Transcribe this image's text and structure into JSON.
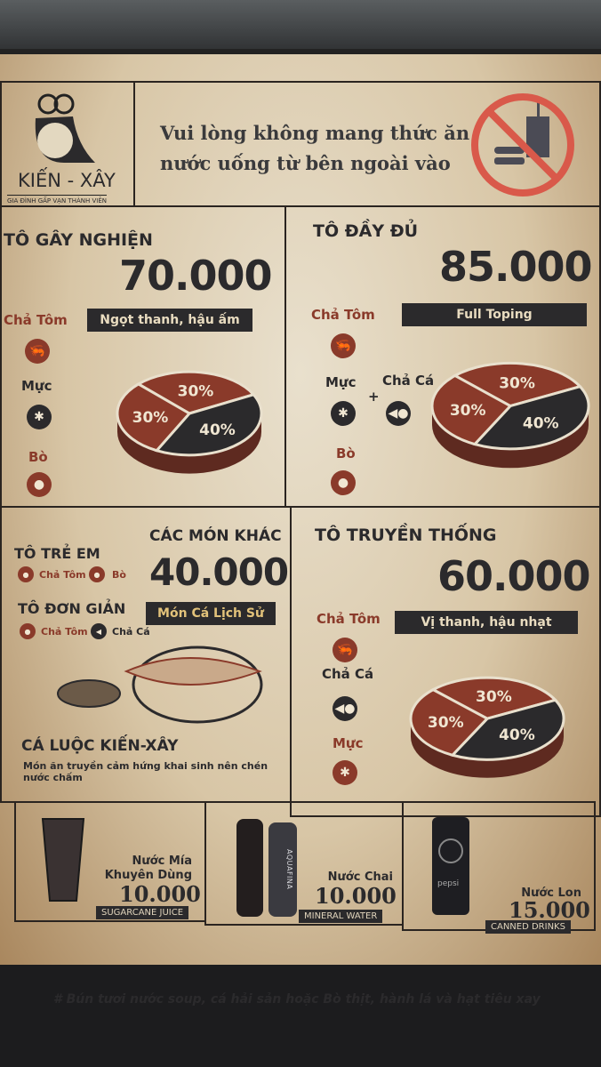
{
  "header": {
    "brand": "KIẾN - XÂY",
    "tagline": "GIA ĐÌNH GẤP VẠN THÀNH VIÊN",
    "notice_line1": "Vui lòng không mang thức ăn",
    "notice_line2": "nước uống từ bên ngoài vào",
    "notice_icon": "no-outside-food-icon"
  },
  "colors": {
    "dark": "#2b2a2c",
    "red": "#8a3a2a",
    "paper": "#e9e0cd"
  },
  "sections": [
    {
      "title": "TÔ GÂY NGHIỆN",
      "price": "70.000",
      "ribbon": "Ngọt thanh, hậu ấm",
      "items": [
        "Chả Tôm",
        "Mực",
        "Bò"
      ],
      "pie": [
        {
          "label": "30%",
          "value": 30
        },
        {
          "label": "40%",
          "value": 40
        },
        {
          "label": "30%",
          "value": 30
        }
      ]
    },
    {
      "title": "TÔ ĐẦY ĐỦ",
      "price": "85.000",
      "ribbon": "Full Toping",
      "items": [
        "Chả Tôm",
        "Mực",
        "Chả Cá",
        "Bò"
      ],
      "plus": "+",
      "pie": [
        {
          "label": "30%",
          "value": 30
        },
        {
          "label": "40%",
          "value": 40
        },
        {
          "label": "30%",
          "value": 30
        }
      ]
    },
    {
      "title": "CÁC MÓN KHÁC",
      "price": "40.000",
      "ribbon": "Món Cá Lịch Sử",
      "kids": {
        "title": "TÔ TRẺ EM",
        "items": [
          "Chả Tôm",
          "Bò"
        ]
      },
      "simple": {
        "title": "TÔ ĐƠN GIẢN",
        "items": [
          "Chả Tôm",
          "Chả Cá"
        ]
      },
      "dish": "CÁ LUỘC KIẾN-XÂY",
      "dish_desc": "Món ăn truyền cảm hứng khai sinh nên chén nước chấm"
    },
    {
      "title": "TÔ TRUYỀN THỐNG",
      "price": "60.000",
      "ribbon": "Vị thanh, hậu nhạt",
      "items": [
        "Chả Tôm",
        "Chả Cá",
        "Mực"
      ],
      "pie": [
        {
          "label": "30%",
          "value": 30
        },
        {
          "label": "40%",
          "value": 40
        },
        {
          "label": "30%",
          "value": 30
        }
      ]
    }
  ],
  "drinks": [
    {
      "name1": "Nước Mía",
      "name2": "Khuyên Dùng",
      "price": "10.000",
      "en": "SUGARCANE JUICE"
    },
    {
      "name1": "Nước Chai",
      "price": "10.000",
      "en": "MINERAL WATER",
      "brand": "AQUAFINA"
    },
    {
      "name1": "Nước Lon",
      "price": "15.000",
      "en": "CANNED DRINKS",
      "brand": "pepsi"
    }
  ],
  "footer": "# Bún tươi nước soup, cá hải sản hoặc Bò thịt, hành lá và hạt tiêu xay"
}
